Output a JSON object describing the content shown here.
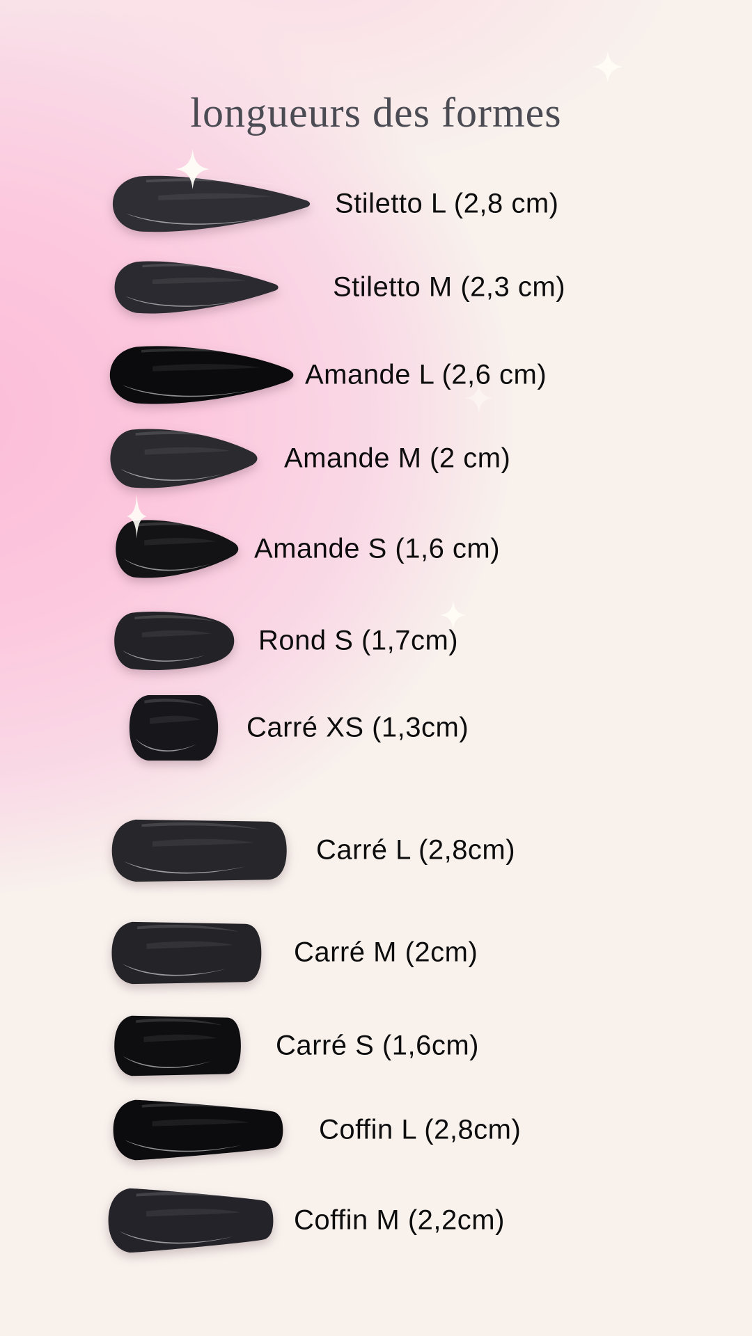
{
  "title": "longueurs des formes",
  "colors": {
    "background_pink": "#fcc6dd",
    "background_cream": "#f8f1ec",
    "title_color": "#4a4b53",
    "label_color": "#0d0d0e",
    "sparkle_color": "#fffdf6"
  },
  "items": [
    {
      "label": "Stiletto L (2,8 cm)",
      "shape": "stiletto",
      "size": "L",
      "length_cm": "2,8",
      "nail_color": "#2e2e34"
    },
    {
      "label": "Stiletto M (2,3 cm)",
      "shape": "stiletto",
      "size": "M",
      "length_cm": "2,3",
      "nail_color": "#2a2a30"
    },
    {
      "label": "Amande L (2,6 cm)",
      "shape": "amande",
      "size": "L",
      "length_cm": "2,6",
      "nail_color": "#0b0b0e"
    },
    {
      "label": "Amande M (2 cm)",
      "shape": "amande",
      "size": "M",
      "length_cm": "2",
      "nail_color": "#2a2a2f"
    },
    {
      "label": "Amande S (1,6 cm)",
      "shape": "amande",
      "size": "S",
      "length_cm": "1,6",
      "nail_color": "#131316"
    },
    {
      "label": "Rond S (1,7cm)",
      "shape": "rond",
      "size": "S",
      "length_cm": "1,7",
      "nail_color": "#232327"
    },
    {
      "label": "Carré XS (1,3cm)",
      "shape": "squoval",
      "size": "XS",
      "length_cm": "1,3",
      "nail_color": "#16161b"
    },
    {
      "label": "Carré L (2,8cm)",
      "shape": "square",
      "size": "L",
      "length_cm": "2,8",
      "nail_color": "#26262b"
    },
    {
      "label": "Carré M (2cm)",
      "shape": "square",
      "size": "M",
      "length_cm": "2",
      "nail_color": "#232328"
    },
    {
      "label": "Carré S (1,6cm)",
      "shape": "square",
      "size": "S",
      "length_cm": "1,6",
      "nail_color": "#0e0e11"
    },
    {
      "label": "Coffin L (2,8cm)",
      "shape": "coffin",
      "size": "L",
      "length_cm": "2,8",
      "nail_color": "#0c0c0f"
    },
    {
      "label": "Coffin M (2,2cm)",
      "shape": "coffin",
      "size": "M",
      "length_cm": "2,2",
      "nail_color": "#232329"
    }
  ]
}
